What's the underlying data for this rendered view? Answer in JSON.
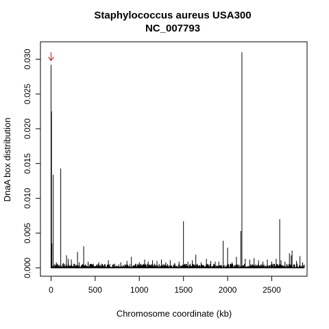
{
  "chart_data": {
    "type": "bar",
    "title": [
      "Staphylococcus aureus USA300",
      "NC_007793"
    ],
    "xlabel": "Chromosome coordinate (kb)",
    "ylabel": "DnaA box distribution",
    "xlim": [
      -120,
      2900
    ],
    "ylim": [
      -0.0012,
      0.0325
    ],
    "x_ticks": [
      0,
      500,
      1000,
      1500,
      2000,
      2500
    ],
    "y_ticks": [
      0.0,
      0.005,
      0.01,
      0.015,
      0.02,
      0.025,
      0.03
    ],
    "y_tick_labels": [
      "0.000",
      "0.005",
      "0.010",
      "0.015",
      "0.020",
      "0.025",
      "0.030"
    ],
    "grid": false,
    "box": true,
    "colors": {
      "bars": "#000000",
      "arrow": "#cc0000"
    },
    "annotations": [
      {
        "type": "arrow-down",
        "x": 0,
        "y": 0.0312
      }
    ],
    "x": [
      0,
      5,
      10,
      25,
      60,
      75,
      110,
      140,
      175,
      195,
      230,
      260,
      300,
      320,
      370,
      420,
      480,
      540,
      610,
      650,
      720,
      790,
      860,
      910,
      960,
      1000,
      1060,
      1100,
      1150,
      1200,
      1250,
      1300,
      1350,
      1400,
      1450,
      1500,
      1550,
      1600,
      1640,
      1700,
      1760,
      1810,
      1860,
      1900,
      1950,
      2000,
      2050,
      2100,
      2150,
      2162,
      2200,
      2250,
      2300,
      2350,
      2400,
      2450,
      2500,
      2550,
      2590,
      2605,
      2650,
      2700,
      2720,
      2730,
      2780,
      2820,
      2850
    ],
    "values": [
      0.0292,
      0.0225,
      0.0035,
      0.0134,
      0.0008,
      0.0006,
      0.0143,
      0.0007,
      0.0018,
      0.0013,
      0.0012,
      0.0006,
      0.0023,
      0.0008,
      0.0031,
      0.0009,
      0.0006,
      0.0008,
      0.0005,
      0.0011,
      0.0006,
      0.0008,
      0.001,
      0.0016,
      0.0006,
      0.0008,
      0.0012,
      0.0009,
      0.0011,
      0.001,
      0.0012,
      0.0008,
      0.0011,
      0.0007,
      0.0009,
      0.0067,
      0.0009,
      0.0011,
      0.0019,
      0.0008,
      0.0013,
      0.001,
      0.0009,
      0.0009,
      0.0039,
      0.0029,
      0.0008,
      0.0016,
      0.0053,
      0.031,
      0.0013,
      0.0012,
      0.0014,
      0.0011,
      0.0009,
      0.0012,
      0.0009,
      0.0013,
      0.007,
      0.0011,
      0.0009,
      0.0021,
      0.0018,
      0.0025,
      0.001,
      0.0017,
      0.0008
    ]
  }
}
